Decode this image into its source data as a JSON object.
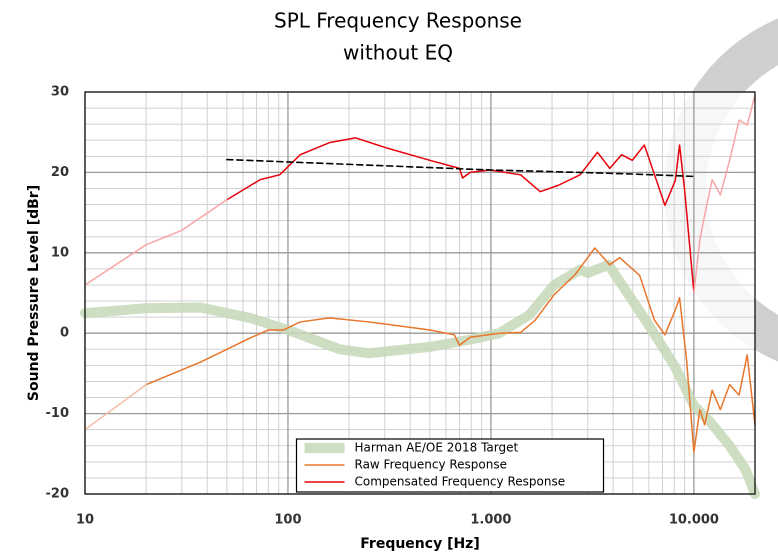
{
  "chart_data": {
    "type": "line",
    "title": "SPL Frequency Response",
    "subtitle": "without EQ",
    "x_label": "Frequency [Hz]",
    "y_label": "Sound Pressure Level [dBr]",
    "xscale": "log",
    "xlim": [
      10,
      20000
    ],
    "ylim": [
      -20,
      30
    ],
    "xticks": [
      10,
      100,
      {
        "value": 1000,
        "label": "1.000"
      },
      {
        "value": 10000,
        "label": "10.000"
      }
    ],
    "yticks": [
      -20,
      -10,
      0,
      10,
      20,
      30
    ],
    "xminorticks": [
      20,
      30,
      40,
      50,
      60,
      70,
      80,
      90,
      200,
      300,
      400,
      500,
      600,
      700,
      800,
      900,
      2000,
      3000,
      4000,
      5000,
      6000,
      7000,
      8000,
      9000
    ],
    "yminorticks": [
      -18,
      -16,
      -14,
      -12,
      -8,
      -6,
      -4,
      -2,
      2,
      4,
      6,
      8,
      12,
      14,
      16,
      18,
      22,
      24,
      26,
      28
    ],
    "grid": true,
    "legend": "lower center",
    "series": [
      {
        "name": "Harman AE/OE 2018 Target",
        "color": "#c5d8b8",
        "style": "band",
        "x": [
          10,
          20,
          37,
          65,
          100,
          180,
          250,
          500,
          790,
          1100,
          1550,
          2050,
          2750,
          3000,
          3800,
          5000,
          6000,
          8000,
          10000,
          12000,
          15000,
          18000,
          20000
        ],
        "values": [
          2.5,
          3.1,
          3.2,
          1.9,
          0.4,
          -2,
          -2.5,
          -1.7,
          -0.8,
          0,
          2.3,
          6,
          7.9,
          7.5,
          8.5,
          4,
          1,
          -4,
          -9,
          -11,
          -14,
          -17,
          -20
        ]
      },
      {
        "name": "Raw Frequency Response",
        "color": "#e8762b",
        "x": [
          20,
          37,
          65,
          80,
          95,
          115,
          160,
          250,
          500,
          660,
          700,
          790,
          1100,
          1400,
          1650,
          2050,
          2600,
          3250,
          3850,
          4300,
          5400,
          6400,
          7200,
          8100,
          8500,
          9200,
          10000,
          10700,
          11300,
          12300,
          13500,
          15000,
          16700,
          18300,
          20000
        ],
        "values": [
          -6.4,
          -3.6,
          -0.6,
          0.4,
          0.4,
          1.4,
          1.9,
          1.4,
          0.4,
          -0.2,
          -1.5,
          -0.5,
          0,
          0.1,
          1.6,
          4.8,
          7.3,
          10.6,
          8.5,
          9.4,
          7.2,
          1.6,
          -0.2,
          2.9,
          4.4,
          -3.3,
          -14.8,
          -9.5,
          -11.4,
          -7.1,
          -9.5,
          -6.4,
          -7.7,
          -2.7,
          -11.4
        ]
      },
      {
        "name": "Compensated Frequency Response",
        "color": "#e8000b",
        "x": [
          50,
          73,
          91,
          115,
          160,
          215,
          310,
          500,
          700,
          725,
          790,
          990,
          1400,
          1750,
          2150,
          2750,
          3350,
          3850,
          4400,
          4970,
          5700,
          6400,
          7200,
          8100,
          8500,
          9000,
          10000
        ],
        "values": [
          16.6,
          19.1,
          19.7,
          22.2,
          23.7,
          24.3,
          23,
          21.5,
          20.5,
          19.3,
          20,
          20.3,
          19.7,
          17.6,
          18.4,
          19.7,
          22.5,
          20.5,
          22.2,
          21.5,
          23.4,
          19.7,
          15.9,
          19,
          23.4,
          17.8,
          5.1
        ]
      },
      {
        "color": "#f7a6a6",
        "x": [
          10,
          20,
          30,
          50
        ],
        "values": [
          6,
          11,
          12.8,
          16.6
        ]
      },
      {
        "color": "#f7a6a6",
        "x": [
          10000,
          10700,
          11300,
          12300,
          13500,
          15000,
          16700,
          18300,
          20000
        ],
        "values": [
          5.1,
          11.6,
          14.7,
          19.1,
          17.2,
          21.5,
          26.5,
          25.9,
          29.6
        ]
      },
      {
        "color": "#f5b9a0",
        "x": [
          10,
          20
        ],
        "values": [
          -12,
          -6.4
        ]
      },
      {
        "color": "#000000",
        "style": "dashed",
        "x": [
          50,
          100,
          200,
          500,
          1000,
          2000,
          5000,
          10000
        ],
        "values": [
          21.6,
          21.3,
          21,
          20.6,
          20.3,
          20.1,
          19.8,
          19.5
        ]
      }
    ]
  }
}
